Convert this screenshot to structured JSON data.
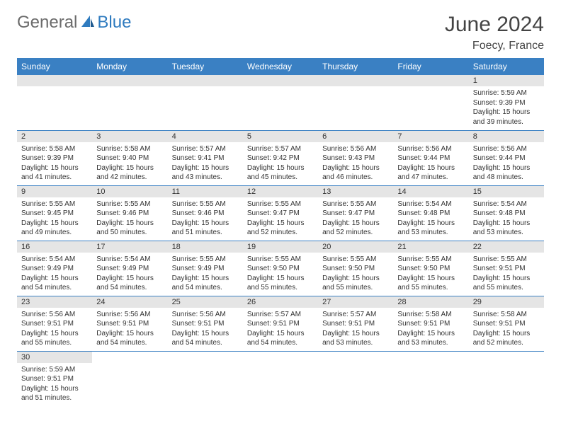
{
  "brand": {
    "gray": "General",
    "blue": "Blue"
  },
  "title": "June 2024",
  "location": "Foecy, France",
  "colors": {
    "header_bg": "#3a80c3",
    "header_text": "#ffffff",
    "daynum_bg": "#e5e5e5",
    "border": "#3a80c3",
    "brand_gray": "#6b6b6b",
    "brand_blue": "#2f7bbf"
  },
  "weekdays": [
    "Sunday",
    "Monday",
    "Tuesday",
    "Wednesday",
    "Thursday",
    "Friday",
    "Saturday"
  ],
  "weeks": [
    [
      null,
      null,
      null,
      null,
      null,
      null,
      {
        "n": "1",
        "sr": "Sunrise: 5:59 AM",
        "ss": "Sunset: 9:39 PM",
        "dl": "Daylight: 15 hours and 39 minutes."
      }
    ],
    [
      {
        "n": "2",
        "sr": "Sunrise: 5:58 AM",
        "ss": "Sunset: 9:39 PM",
        "dl": "Daylight: 15 hours and 41 minutes."
      },
      {
        "n": "3",
        "sr": "Sunrise: 5:58 AM",
        "ss": "Sunset: 9:40 PM",
        "dl": "Daylight: 15 hours and 42 minutes."
      },
      {
        "n": "4",
        "sr": "Sunrise: 5:57 AM",
        "ss": "Sunset: 9:41 PM",
        "dl": "Daylight: 15 hours and 43 minutes."
      },
      {
        "n": "5",
        "sr": "Sunrise: 5:57 AM",
        "ss": "Sunset: 9:42 PM",
        "dl": "Daylight: 15 hours and 45 minutes."
      },
      {
        "n": "6",
        "sr": "Sunrise: 5:56 AM",
        "ss": "Sunset: 9:43 PM",
        "dl": "Daylight: 15 hours and 46 minutes."
      },
      {
        "n": "7",
        "sr": "Sunrise: 5:56 AM",
        "ss": "Sunset: 9:44 PM",
        "dl": "Daylight: 15 hours and 47 minutes."
      },
      {
        "n": "8",
        "sr": "Sunrise: 5:56 AM",
        "ss": "Sunset: 9:44 PM",
        "dl": "Daylight: 15 hours and 48 minutes."
      }
    ],
    [
      {
        "n": "9",
        "sr": "Sunrise: 5:55 AM",
        "ss": "Sunset: 9:45 PM",
        "dl": "Daylight: 15 hours and 49 minutes."
      },
      {
        "n": "10",
        "sr": "Sunrise: 5:55 AM",
        "ss": "Sunset: 9:46 PM",
        "dl": "Daylight: 15 hours and 50 minutes."
      },
      {
        "n": "11",
        "sr": "Sunrise: 5:55 AM",
        "ss": "Sunset: 9:46 PM",
        "dl": "Daylight: 15 hours and 51 minutes."
      },
      {
        "n": "12",
        "sr": "Sunrise: 5:55 AM",
        "ss": "Sunset: 9:47 PM",
        "dl": "Daylight: 15 hours and 52 minutes."
      },
      {
        "n": "13",
        "sr": "Sunrise: 5:55 AM",
        "ss": "Sunset: 9:47 PM",
        "dl": "Daylight: 15 hours and 52 minutes."
      },
      {
        "n": "14",
        "sr": "Sunrise: 5:54 AM",
        "ss": "Sunset: 9:48 PM",
        "dl": "Daylight: 15 hours and 53 minutes."
      },
      {
        "n": "15",
        "sr": "Sunrise: 5:54 AM",
        "ss": "Sunset: 9:48 PM",
        "dl": "Daylight: 15 hours and 53 minutes."
      }
    ],
    [
      {
        "n": "16",
        "sr": "Sunrise: 5:54 AM",
        "ss": "Sunset: 9:49 PM",
        "dl": "Daylight: 15 hours and 54 minutes."
      },
      {
        "n": "17",
        "sr": "Sunrise: 5:54 AM",
        "ss": "Sunset: 9:49 PM",
        "dl": "Daylight: 15 hours and 54 minutes."
      },
      {
        "n": "18",
        "sr": "Sunrise: 5:55 AM",
        "ss": "Sunset: 9:49 PM",
        "dl": "Daylight: 15 hours and 54 minutes."
      },
      {
        "n": "19",
        "sr": "Sunrise: 5:55 AM",
        "ss": "Sunset: 9:50 PM",
        "dl": "Daylight: 15 hours and 55 minutes."
      },
      {
        "n": "20",
        "sr": "Sunrise: 5:55 AM",
        "ss": "Sunset: 9:50 PM",
        "dl": "Daylight: 15 hours and 55 minutes."
      },
      {
        "n": "21",
        "sr": "Sunrise: 5:55 AM",
        "ss": "Sunset: 9:50 PM",
        "dl": "Daylight: 15 hours and 55 minutes."
      },
      {
        "n": "22",
        "sr": "Sunrise: 5:55 AM",
        "ss": "Sunset: 9:51 PM",
        "dl": "Daylight: 15 hours and 55 minutes."
      }
    ],
    [
      {
        "n": "23",
        "sr": "Sunrise: 5:56 AM",
        "ss": "Sunset: 9:51 PM",
        "dl": "Daylight: 15 hours and 55 minutes."
      },
      {
        "n": "24",
        "sr": "Sunrise: 5:56 AM",
        "ss": "Sunset: 9:51 PM",
        "dl": "Daylight: 15 hours and 54 minutes."
      },
      {
        "n": "25",
        "sr": "Sunrise: 5:56 AM",
        "ss": "Sunset: 9:51 PM",
        "dl": "Daylight: 15 hours and 54 minutes."
      },
      {
        "n": "26",
        "sr": "Sunrise: 5:57 AM",
        "ss": "Sunset: 9:51 PM",
        "dl": "Daylight: 15 hours and 54 minutes."
      },
      {
        "n": "27",
        "sr": "Sunrise: 5:57 AM",
        "ss": "Sunset: 9:51 PM",
        "dl": "Daylight: 15 hours and 53 minutes."
      },
      {
        "n": "28",
        "sr": "Sunrise: 5:58 AM",
        "ss": "Sunset: 9:51 PM",
        "dl": "Daylight: 15 hours and 53 minutes."
      },
      {
        "n": "29",
        "sr": "Sunrise: 5:58 AM",
        "ss": "Sunset: 9:51 PM",
        "dl": "Daylight: 15 hours and 52 minutes."
      }
    ],
    [
      {
        "n": "30",
        "sr": "Sunrise: 5:59 AM",
        "ss": "Sunset: 9:51 PM",
        "dl": "Daylight: 15 hours and 51 minutes."
      },
      null,
      null,
      null,
      null,
      null,
      null
    ]
  ]
}
